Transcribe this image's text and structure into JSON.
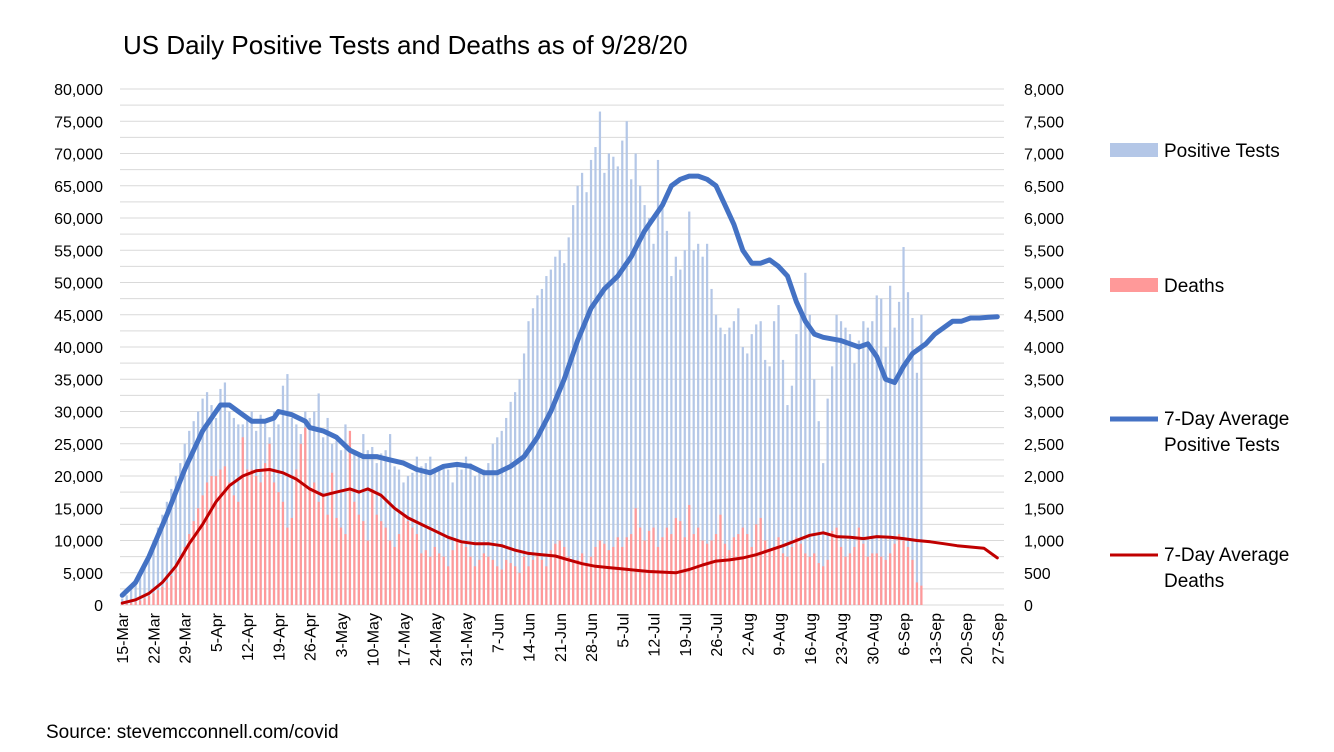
{
  "chart_data": {
    "type": "bar",
    "title": "US Daily  Positive Tests and Deaths as of 9/28/20",
    "source": "Source: stevemcconnell.com/covid",
    "y_left": {
      "min": 0,
      "max": 80000,
      "step": 5000,
      "tick_labels": [
        "0",
        "5,000",
        "10,000",
        "15,000",
        "20,000",
        "25,000",
        "30,000",
        "35,000",
        "40,000",
        "45,000",
        "50,000",
        "55,000",
        "60,000",
        "65,000",
        "70,000",
        "75,000",
        "80,000"
      ]
    },
    "y_right": {
      "min": 0,
      "max": 8000,
      "step": 500,
      "tick_labels": [
        "0",
        "500",
        "1,000",
        "1,500",
        "2,000",
        "2,500",
        "3,000",
        "3,500",
        "4,000",
        "4,500",
        "5,000",
        "5,500",
        "6,000",
        "6,500",
        "7,000",
        "7,500",
        "8,000"
      ]
    },
    "x_start": "15-Mar",
    "x_tick_labels": [
      "15-Mar",
      "22-Mar",
      "29-Mar",
      "5-Apr",
      "12-Apr",
      "19-Apr",
      "26-Apr",
      "3-May",
      "10-May",
      "17-May",
      "24-May",
      "31-May",
      "7-Jun",
      "14-Jun",
      "21-Jun",
      "28-Jun",
      "5-Jul",
      "12-Jul",
      "19-Jul",
      "26-Jul",
      "2-Aug",
      "9-Aug",
      "16-Aug",
      "23-Aug",
      "30-Aug",
      "6-Sep",
      "13-Sep",
      "20-Sep",
      "27-Sep"
    ],
    "series": [
      {
        "name": "Positive Tests",
        "type": "bar",
        "axis": "left",
        "color": "#b4c7e7",
        "values": [
          1000,
          1500,
          2500,
          3200,
          4500,
          6000,
          8000,
          10000,
          12000,
          14000,
          16000,
          18000,
          20000,
          22000,
          25000,
          27000,
          28500,
          30000,
          32000,
          33000,
          31000,
          29000,
          33500,
          34500,
          30000,
          29000,
          28000,
          28000,
          29000,
          30000,
          27000,
          29500,
          28500,
          26000,
          30000,
          28000,
          34000,
          35800,
          29000,
          28000,
          26500,
          30000,
          29000,
          30000,
          32800,
          26000,
          29000,
          25000,
          25500,
          24000,
          28000,
          25000,
          24000,
          23500,
          26500,
          24000,
          24500,
          22000,
          23500,
          24000,
          26500,
          21500,
          21000,
          19000,
          20000,
          20500,
          23000,
          21500,
          22000,
          23000,
          20500,
          21000,
          21500,
          21000,
          19000,
          22000,
          21000,
          23000,
          22000,
          20000,
          20500,
          21000,
          22000,
          25000,
          26000,
          27000,
          29000,
          31500,
          33000,
          35000,
          39000,
          44000,
          46000,
          48000,
          49000,
          51000,
          52000,
          54000,
          55000,
          53000,
          57000,
          62000,
          65000,
          67000,
          64000,
          69000,
          71000,
          76500,
          67000,
          70000,
          69500,
          68000,
          72000,
          75000,
          66000,
          70000,
          65000,
          62000,
          60000,
          56000,
          69000,
          62000,
          58000,
          51000,
          54000,
          52000,
          55000,
          61000,
          55000,
          56000,
          54000,
          56000,
          49000,
          45000,
          43000,
          42000,
          43000,
          44000,
          46000,
          40000,
          39000,
          42000,
          43500,
          44000,
          38000,
          37000,
          44000,
          46500,
          38000,
          31000,
          34000,
          42000,
          45000,
          51500,
          45000,
          35000,
          28500,
          22000,
          32000,
          37000,
          45000,
          44000,
          43000,
          42000,
          37500,
          41000,
          44000,
          43000,
          44000,
          48000,
          47500,
          40000,
          49500,
          43000,
          47000,
          55500,
          48500,
          44500,
          36000,
          45000
        ]
      },
      {
        "name": "Deaths",
        "type": "bar",
        "axis": "left",
        "color": "#ff9999",
        "values": [
          100,
          150,
          300,
          500,
          700,
          1000,
          1400,
          1800,
          2300,
          2800,
          3500,
          4500,
          5500,
          7000,
          9000,
          11000,
          13000,
          15000,
          17000,
          19000,
          20000,
          20000,
          21000,
          21500,
          19000,
          17000,
          16000,
          26000,
          21000,
          21000,
          20000,
          19000,
          22000,
          25000,
          19000,
          17500,
          16000,
          12000,
          13500,
          21000,
          25000,
          27500,
          18000,
          19000,
          16000,
          17000,
          14000,
          20500,
          13500,
          12000,
          11000,
          27000,
          16000,
          14000,
          13000,
          10000,
          18000,
          14000,
          13000,
          12000,
          10000,
          9000,
          11000,
          14000,
          13000,
          12000,
          11000,
          8000,
          8500,
          7500,
          9000,
          8000,
          7500,
          6000,
          8500,
          10000,
          9500,
          9000,
          7500,
          6000,
          7000,
          8000,
          7500,
          7000,
          6000,
          5500,
          7000,
          6500,
          6000,
          5000,
          7500,
          6000,
          7000,
          8000,
          7000,
          6000,
          8500,
          9500,
          10000,
          9000,
          7500,
          6500,
          7000,
          8000,
          6500,
          7500,
          9000,
          10000,
          9500,
          8500,
          9000,
          10500,
          9000,
          10500,
          11000,
          15000,
          12000,
          10000,
          11500,
          12000,
          9000,
          10500,
          12000,
          11000,
          13500,
          13000,
          10500,
          15500,
          11000,
          12000,
          10000,
          9500,
          10000,
          11000,
          14000,
          9500,
          8500,
          10500,
          11000,
          12000,
          11000,
          9000,
          12500,
          13500,
          10000,
          8500,
          9000,
          10500,
          8000,
          7500,
          9000,
          10500,
          9500,
          8000,
          7500,
          8000,
          6500,
          6000,
          7000,
          11500,
          12000,
          9000,
          7500,
          8000,
          9000,
          12000,
          9500,
          7500,
          8000,
          8000,
          7500,
          7000,
          8000,
          9500,
          11000,
          10000,
          9000,
          7000,
          3500,
          3000
        ]
      },
      {
        "name": "7-Day Average Positive Tests",
        "type": "line",
        "axis": "left",
        "color": "#4472c4",
        "points": [
          [
            0,
            1500
          ],
          [
            3,
            3500
          ],
          [
            6,
            7500
          ],
          [
            10,
            14000
          ],
          [
            14,
            21000
          ],
          [
            18,
            27000
          ],
          [
            21,
            30000
          ],
          [
            22,
            31000
          ],
          [
            24,
            31000
          ],
          [
            26,
            30000
          ],
          [
            29,
            28500
          ],
          [
            32,
            28500
          ],
          [
            34,
            29000
          ],
          [
            35,
            30000
          ],
          [
            38,
            29500
          ],
          [
            41,
            28500
          ],
          [
            42,
            27500
          ],
          [
            45,
            27000
          ],
          [
            48,
            26000
          ],
          [
            51,
            24000
          ],
          [
            54,
            23000
          ],
          [
            57,
            23000
          ],
          [
            60,
            22500
          ],
          [
            63,
            22000
          ],
          [
            66,
            21000
          ],
          [
            69,
            20500
          ],
          [
            72,
            21500
          ],
          [
            75,
            21800
          ],
          [
            78,
            21500
          ],
          [
            81,
            20500
          ],
          [
            84,
            20500
          ],
          [
            87,
            21500
          ],
          [
            90,
            23000
          ],
          [
            93,
            26000
          ],
          [
            96,
            30000
          ],
          [
            99,
            35000
          ],
          [
            102,
            41000
          ],
          [
            105,
            46000
          ],
          [
            108,
            49000
          ],
          [
            111,
            51000
          ],
          [
            114,
            54000
          ],
          [
            117,
            58000
          ],
          [
            120,
            61000
          ],
          [
            121,
            62000
          ],
          [
            123,
            65000
          ],
          [
            125,
            66000
          ],
          [
            127,
            66500
          ],
          [
            129,
            66500
          ],
          [
            131,
            66000
          ],
          [
            133,
            65000
          ],
          [
            135,
            62000
          ],
          [
            137,
            59000
          ],
          [
            139,
            55000
          ],
          [
            141,
            53000
          ],
          [
            143,
            53000
          ],
          [
            145,
            53500
          ],
          [
            147,
            52500
          ],
          [
            149,
            51000
          ],
          [
            151,
            47000
          ],
          [
            153,
            44000
          ],
          [
            155,
            42000
          ],
          [
            157,
            41500
          ],
          [
            161,
            41000
          ],
          [
            163,
            40500
          ],
          [
            165,
            40000
          ],
          [
            167,
            40500
          ],
          [
            169,
            38500
          ],
          [
            171,
            35000
          ],
          [
            173,
            34500
          ],
          [
            175,
            37000
          ],
          [
            177,
            39000
          ],
          [
            180,
            40500
          ],
          [
            182,
            42000
          ],
          [
            184,
            43000
          ],
          [
            186,
            44000
          ],
          [
            188,
            44000
          ],
          [
            190,
            44500
          ],
          [
            192,
            44500
          ],
          [
            194,
            44600
          ],
          [
            196,
            44700
          ]
        ]
      },
      {
        "name": "7-Day Average Deaths",
        "type": "line",
        "axis": "right",
        "color": "#c00000",
        "points": [
          [
            0,
            30
          ],
          [
            3,
            80
          ],
          [
            6,
            180
          ],
          [
            9,
            350
          ],
          [
            12,
            600
          ],
          [
            15,
            950
          ],
          [
            18,
            1250
          ],
          [
            21,
            1600
          ],
          [
            24,
            1850
          ],
          [
            27,
            2000
          ],
          [
            30,
            2080
          ],
          [
            33,
            2100
          ],
          [
            36,
            2050
          ],
          [
            39,
            1950
          ],
          [
            42,
            1800
          ],
          [
            45,
            1700
          ],
          [
            48,
            1750
          ],
          [
            51,
            1800
          ],
          [
            53,
            1750
          ],
          [
            55,
            1800
          ],
          [
            58,
            1700
          ],
          [
            61,
            1500
          ],
          [
            64,
            1350
          ],
          [
            67,
            1250
          ],
          [
            70,
            1150
          ],
          [
            73,
            1050
          ],
          [
            76,
            980
          ],
          [
            79,
            950
          ],
          [
            82,
            950
          ],
          [
            85,
            920
          ],
          [
            88,
            850
          ],
          [
            91,
            800
          ],
          [
            94,
            780
          ],
          [
            97,
            760
          ],
          [
            100,
            700
          ],
          [
            103,
            640
          ],
          [
            106,
            600
          ],
          [
            109,
            580
          ],
          [
            112,
            560
          ],
          [
            115,
            540
          ],
          [
            118,
            520
          ],
          [
            121,
            510
          ],
          [
            124,
            500
          ],
          [
            127,
            550
          ],
          [
            130,
            620
          ],
          [
            133,
            680
          ],
          [
            136,
            700
          ],
          [
            139,
            730
          ],
          [
            142,
            780
          ],
          [
            145,
            850
          ],
          [
            148,
            920
          ],
          [
            151,
            1000
          ],
          [
            154,
            1080
          ],
          [
            157,
            1120
          ],
          [
            160,
            1060
          ],
          [
            163,
            1050
          ],
          [
            166,
            1030
          ],
          [
            169,
            1060
          ],
          [
            172,
            1050
          ],
          [
            175,
            1030
          ],
          [
            178,
            1000
          ],
          [
            181,
            980
          ],
          [
            184,
            950
          ],
          [
            187,
            920
          ],
          [
            190,
            900
          ],
          [
            193,
            880
          ],
          [
            196,
            730
          ]
        ]
      }
    ]
  }
}
